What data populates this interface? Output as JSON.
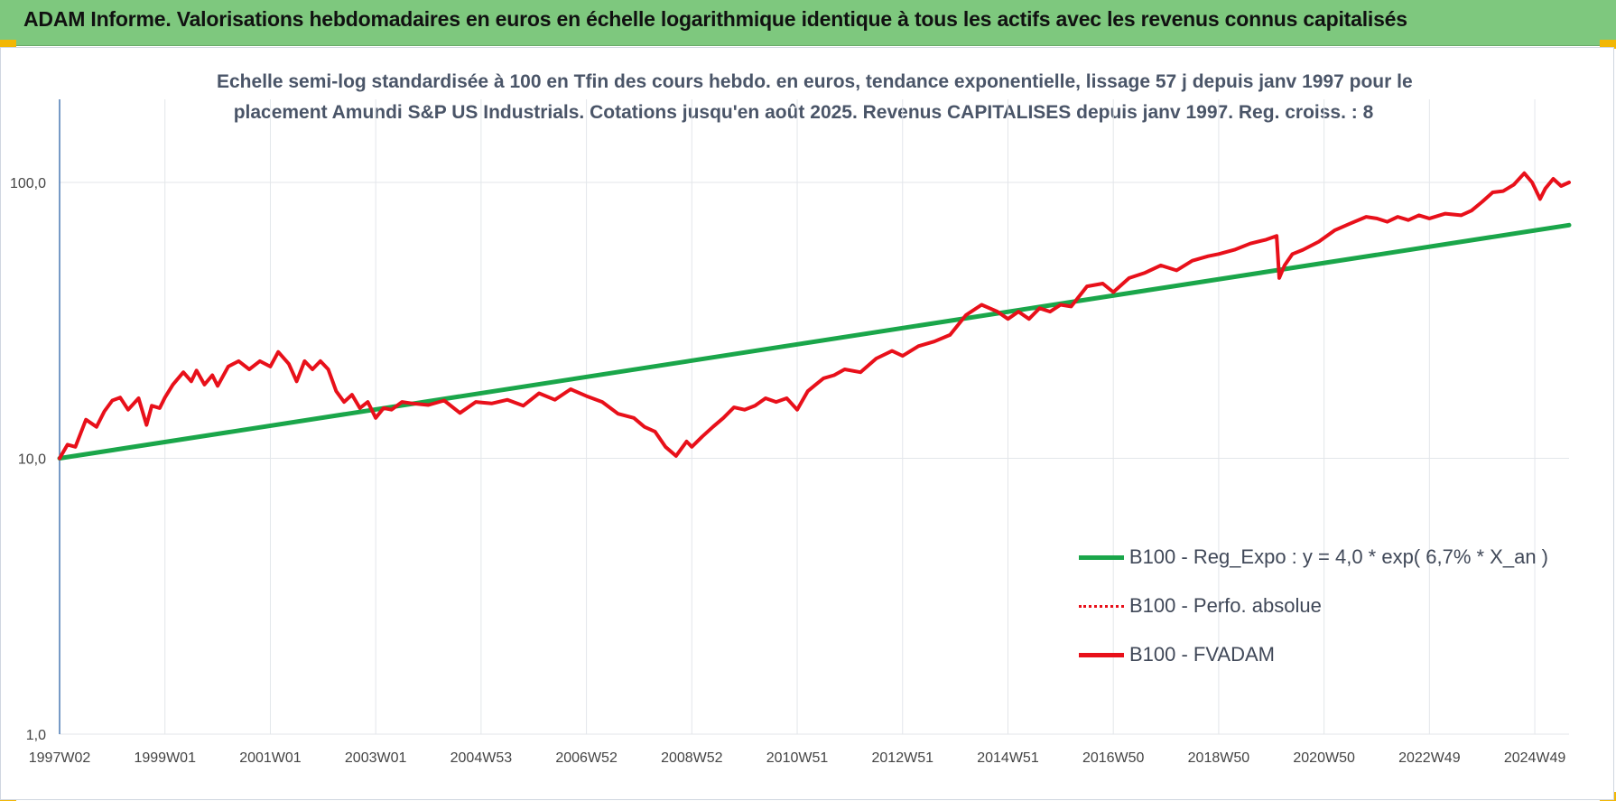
{
  "header": {
    "title": "ADAM Informe. Valorisations hebdomadaires en euros en échelle logarithmique identique à tous les actifs avec les revenus connus capitalisés"
  },
  "colors": {
    "header_bg": "#7ec87e",
    "corner": "#f2b705",
    "trend": "#1aa64a",
    "fvadam": "#e8101a",
    "perfo": "#e8101a",
    "grid": "#e3e6ea",
    "axis": "#4a78b4"
  },
  "chart_data": {
    "type": "line",
    "subtitle_line1": "Echelle semi-log standardisée à 100 en Tfin des cours hebdo. en euros, tendance exponentielle, lissage 57 j depuis janv 1997 pour le",
    "subtitle_line2": "placement Amundi S&P US Industrials. Cotations jusqu'en août 2025. Revenus CAPITALISES depuis janv 1997. Reg. croiss. : 8",
    "y_scale": "log",
    "ylim": [
      1,
      200
    ],
    "y_ticks": [
      {
        "value": 1,
        "label": "1,0"
      },
      {
        "value": 10,
        "label": "10,0"
      },
      {
        "value": 100,
        "label": "100,0"
      }
    ],
    "xlim": [
      1997.0,
      2025.65
    ],
    "x_ticks": [
      {
        "x": 1997.0,
        "label": "1997W02"
      },
      {
        "x": 1999.0,
        "label": "1999W01"
      },
      {
        "x": 2001.0,
        "label": "2001W01"
      },
      {
        "x": 2003.0,
        "label": "2003W01"
      },
      {
        "x": 2005.0,
        "label": "2004W53"
      },
      {
        "x": 2007.0,
        "label": "2006W52"
      },
      {
        "x": 2009.0,
        "label": "2008W52"
      },
      {
        "x": 2011.0,
        "label": "2010W51"
      },
      {
        "x": 2013.0,
        "label": "2012W51"
      },
      {
        "x": 2015.0,
        "label": "2014W51"
      },
      {
        "x": 2017.0,
        "label": "2016W50"
      },
      {
        "x": 2019.0,
        "label": "2018W50"
      },
      {
        "x": 2021.0,
        "label": "2020W50"
      },
      {
        "x": 2023.0,
        "label": "2022W49"
      },
      {
        "x": 2025.0,
        "label": "2024W49"
      }
    ],
    "grid": true,
    "legend_position": "right",
    "series": [
      {
        "name": "B100 - Reg_Expo : y = 4,0 * exp( 6,7% *  X_an )",
        "style": "solid-thick",
        "x": [
          1997.0,
          2025.65
        ],
        "y": [
          10.0,
          70.0
        ]
      },
      {
        "name": "B100 - Perfo. absolue",
        "style": "dotted",
        "x": [],
        "y": []
      },
      {
        "name": "B100 - FVADAM",
        "style": "solid",
        "x": [
          1997.0,
          1997.15,
          1997.3,
          1997.5,
          1997.7,
          1997.85,
          1998.0,
          1998.15,
          1998.3,
          1998.5,
          1998.65,
          1998.75,
          1998.9,
          1999.0,
          1999.15,
          1999.35,
          1999.5,
          1999.6,
          1999.75,
          1999.9,
          2000.0,
          2000.2,
          2000.4,
          2000.6,
          2000.8,
          2001.0,
          2001.15,
          2001.35,
          2001.5,
          2001.65,
          2001.8,
          2001.95,
          2002.1,
          2002.25,
          2002.4,
          2002.55,
          2002.7,
          2002.85,
          2003.0,
          2003.15,
          2003.3,
          2003.5,
          2003.7,
          2004.0,
          2004.3,
          2004.6,
          2004.9,
          2005.2,
          2005.5,
          2005.8,
          2006.1,
          2006.4,
          2006.7,
          2007.0,
          2007.3,
          2007.6,
          2007.9,
          2008.1,
          2008.3,
          2008.5,
          2008.7,
          2008.9,
          2009.0,
          2009.2,
          2009.4,
          2009.6,
          2009.8,
          2010.0,
          2010.2,
          2010.4,
          2010.6,
          2010.8,
          2011.0,
          2011.2,
          2011.35,
          2011.5,
          2011.7,
          2011.9,
          2012.2,
          2012.5,
          2012.8,
          2013.0,
          2013.3,
          2013.6,
          2013.9,
          2014.2,
          2014.5,
          2014.8,
          2015.0,
          2015.2,
          2015.4,
          2015.6,
          2015.8,
          2016.0,
          2016.2,
          2016.5,
          2016.8,
          2017.0,
          2017.3,
          2017.6,
          2017.9,
          2018.2,
          2018.5,
          2018.8,
          2019.0,
          2019.3,
          2019.6,
          2019.9,
          2020.1,
          2020.15,
          2020.25,
          2020.4,
          2020.6,
          2020.9,
          2021.2,
          2021.5,
          2021.8,
          2022.0,
          2022.2,
          2022.4,
          2022.6,
          2022.8,
          2023.0,
          2023.3,
          2023.6,
          2023.8,
          2024.0,
          2024.2,
          2024.4,
          2024.6,
          2024.8,
          2024.95,
          2025.1,
          2025.2,
          2025.35,
          2025.5,
          2025.65
        ],
        "y": [
          10.0,
          11.2,
          11.0,
          13.8,
          13.0,
          14.8,
          16.2,
          16.6,
          15.0,
          16.5,
          13.2,
          15.5,
          15.2,
          16.6,
          18.5,
          20.5,
          19.0,
          20.8,
          18.5,
          20.0,
          18.3,
          21.5,
          22.5,
          21.0,
          22.5,
          21.5,
          24.3,
          22.0,
          19.0,
          22.5,
          21.0,
          22.5,
          21.0,
          17.5,
          16.0,
          17.0,
          15.2,
          16.0,
          14.0,
          15.2,
          15.0,
          16.0,
          15.8,
          15.6,
          16.2,
          14.6,
          16.0,
          15.8,
          16.3,
          15.5,
          17.2,
          16.3,
          17.8,
          16.8,
          16.0,
          14.5,
          14.0,
          13.0,
          12.5,
          11.0,
          10.2,
          11.5,
          11.0,
          12.0,
          13.0,
          14.0,
          15.3,
          15.0,
          15.5,
          16.5,
          16.0,
          16.5,
          15.0,
          17.5,
          18.5,
          19.5,
          20.0,
          21.0,
          20.5,
          23.0,
          24.5,
          23.5,
          25.5,
          26.5,
          28.0,
          33.0,
          36.0,
          34.0,
          32.0,
          34.0,
          32.0,
          35.0,
          34.0,
          36.0,
          35.5,
          42.0,
          43.0,
          40.0,
          45.0,
          47.0,
          50.0,
          48.0,
          52.0,
          54.0,
          55.0,
          57.0,
          60.0,
          62.0,
          64.0,
          45.0,
          50.0,
          55.0,
          57.0,
          61.0,
          67.0,
          71.0,
          75.0,
          74.0,
          72.0,
          75.0,
          73.0,
          76.0,
          74.0,
          77.0,
          76.0,
          79.0,
          85.0,
          92.0,
          93.0,
          98.0,
          108.0,
          100.0,
          87.0,
          95.0,
          103.0,
          97.0,
          100.0
        ]
      }
    ]
  }
}
